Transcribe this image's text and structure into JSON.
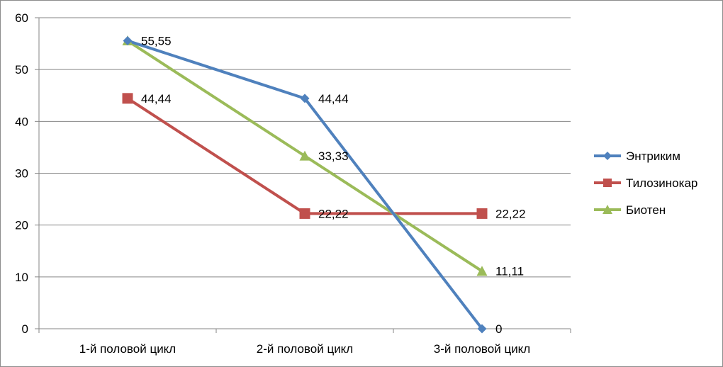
{
  "chart_data": {
    "type": "line",
    "categories": [
      "1-й половой цикл",
      "2-й половой цикл",
      "3-й половой цикл"
    ],
    "ylim": [
      0,
      60
    ],
    "yticks": [
      0,
      10,
      20,
      30,
      40,
      50,
      60
    ],
    "ytick_labels": [
      "0",
      "10",
      "20",
      "30",
      "40",
      "50",
      "60"
    ],
    "grid": true,
    "legend_position": "right",
    "series": [
      {
        "name": "Энтриким",
        "values": [
          55.55,
          44.44,
          0
        ],
        "labels": [
          "55,55",
          "44,44",
          "0"
        ],
        "color": "#4F81BD",
        "marker": "diamond"
      },
      {
        "name": "Тилозинокар",
        "values": [
          44.44,
          22.22,
          22.22
        ],
        "labels": [
          "44,44",
          "22,22",
          "22,22"
        ],
        "color": "#C0504D",
        "marker": "square"
      },
      {
        "name": "Биотен",
        "values": [
          55.55,
          33.33,
          11.11
        ],
        "labels": [
          "",
          "33,33",
          "11,11"
        ],
        "color": "#9BBB59",
        "marker": "triangle"
      }
    ]
  }
}
